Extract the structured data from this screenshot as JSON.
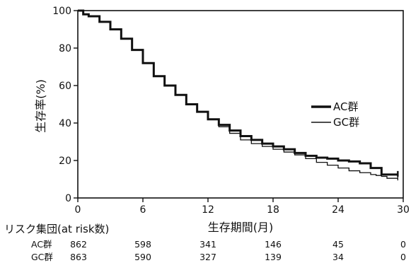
{
  "chart_data": {
    "type": "line",
    "xlabel": "生存期間(月)",
    "ylabel": "生存率(%)",
    "xlim": [
      0,
      30
    ],
    "ylim": [
      0,
      100
    ],
    "x_ticks": [
      "0",
      "6",
      "12",
      "18",
      "24",
      "30"
    ],
    "y_ticks": [
      "0",
      "20",
      "40",
      "60",
      "80",
      "100"
    ],
    "grid": false,
    "legend_position": "right",
    "series": [
      {
        "name": "AC群",
        "line_style": "thick",
        "color": "#111111",
        "x": [
          0,
          0.5,
          1,
          2,
          3,
          4,
          5,
          6,
          7,
          8,
          9,
          10,
          11,
          12,
          13,
          14,
          15,
          16,
          17,
          18,
          19,
          20,
          21,
          22,
          23,
          24,
          25,
          26,
          27,
          27.5,
          28,
          28.5,
          29,
          29.5
        ],
        "y": [
          100,
          98,
          97,
          94,
          90,
          85,
          79,
          72,
          65,
          60,
          55,
          50,
          46,
          42,
          39,
          36,
          33,
          31,
          29,
          27.5,
          26,
          24,
          22.5,
          21.5,
          21,
          20,
          19.5,
          18.5,
          16,
          16,
          12.5,
          12.5,
          12.5,
          12.5
        ]
      },
      {
        "name": "GC群",
        "line_style": "thin",
        "color": "#111111",
        "x": [
          0,
          0.5,
          1,
          2,
          3,
          4,
          5,
          6,
          7,
          8,
          9,
          10,
          11,
          12,
          13,
          14,
          15,
          16,
          17,
          18,
          19,
          20,
          21,
          22,
          23,
          24,
          25,
          26,
          27,
          27.5,
          28,
          28.5,
          29,
          29.5
        ],
        "y": [
          100,
          98,
          97,
          94,
          90,
          85,
          79,
          72,
          65,
          60,
          55,
          50,
          46,
          42,
          38,
          34.5,
          31,
          29,
          27.5,
          26,
          24.5,
          23,
          21,
          19,
          17.5,
          16,
          14.5,
          13.5,
          12.5,
          12,
          11.5,
          10.5,
          10.5,
          10.5
        ]
      }
    ],
    "risk_table": {
      "title": "リスク集団(at risk数)",
      "times": [
        "0",
        "6",
        "12",
        "18",
        "24",
        "30"
      ],
      "rows": [
        {
          "label": "AC群",
          "values": [
            "862",
            "598",
            "341",
            "146",
            "45",
            "0"
          ]
        },
        {
          "label": "GC群",
          "values": [
            "863",
            "590",
            "327",
            "139",
            "34",
            "0"
          ]
        }
      ]
    }
  }
}
